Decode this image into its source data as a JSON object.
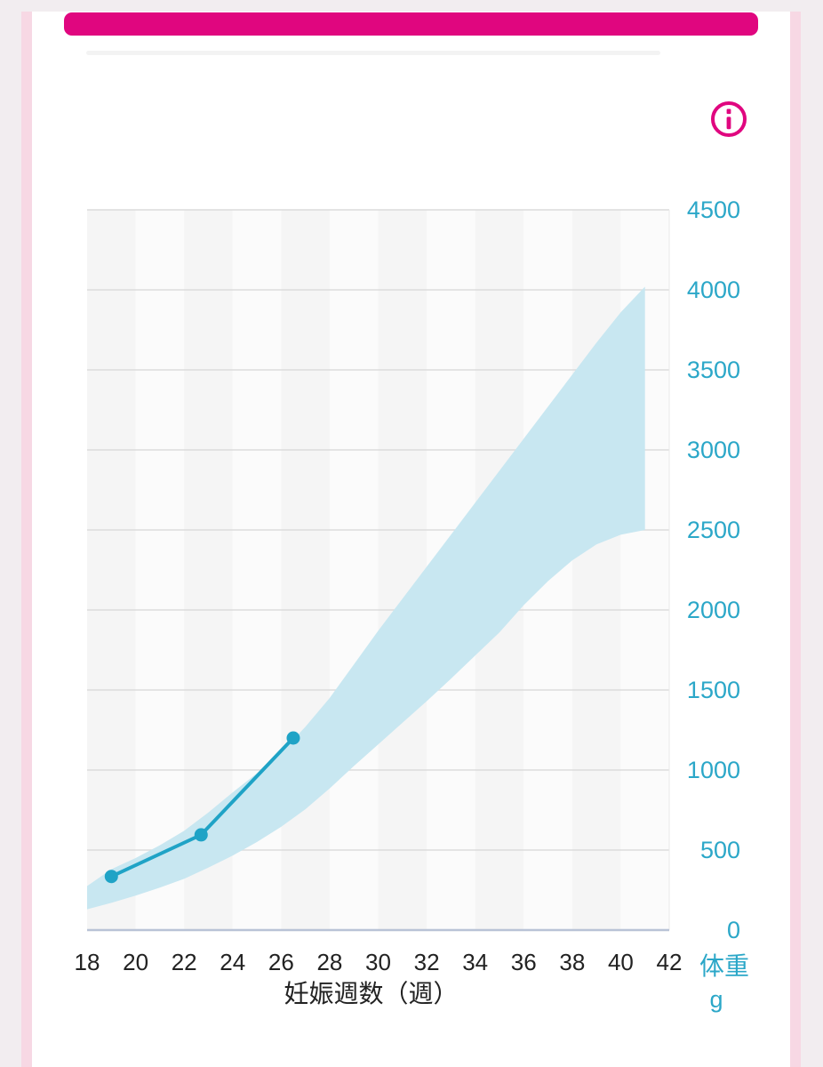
{
  "colors": {
    "accent_magenta": "#E0067F",
    "axis_text_cyan": "#2BA7C8",
    "line_cyan": "#1FA3C6",
    "band_fill": "#C8E7F1",
    "gridline": "#DCDCDC",
    "plot_right_border": "#EAEAEA",
    "x_axis_line": "#B9C3D6",
    "column_dark": "#F5F5F5",
    "column_light": "#FBFBFB",
    "tick_text_dark": "#222222",
    "page_background": "#F2EDF0",
    "side_strip_pink": "#F7D8E4",
    "card_background": "#FFFFFF",
    "header_divider": "#F3F3F3"
  },
  "icons": {
    "info": "i-in-circle"
  },
  "chart_data": {
    "type": "area",
    "title": "",
    "xlabel": "妊娠週数（週）",
    "ylabel": "体重",
    "y_unit": "g",
    "xlim": [
      18,
      42
    ],
    "ylim": [
      0,
      4500
    ],
    "x_ticks": [
      18,
      20,
      22,
      24,
      26,
      28,
      30,
      32,
      34,
      36,
      38,
      40,
      42
    ],
    "y_ticks": [
      0,
      500,
      1000,
      1500,
      2000,
      2500,
      3000,
      3500,
      4000,
      4500
    ],
    "grid": "horizontal",
    "legend": "none",
    "band": {
      "name": "normal_weight_range",
      "weeks": [
        18,
        19,
        20,
        21,
        22,
        23,
        24,
        25,
        26,
        27,
        28,
        29,
        30,
        31,
        32,
        33,
        34,
        35,
        36,
        37,
        38,
        39,
        40,
        41
      ],
      "lower_g": [
        130,
        170,
        215,
        265,
        320,
        390,
        465,
        550,
        645,
        755,
        885,
        1025,
        1160,
        1295,
        1430,
        1570,
        1715,
        1860,
        2030,
        2180,
        2310,
        2410,
        2470,
        2500
      ],
      "upper_g": [
        275,
        380,
        450,
        530,
        620,
        735,
        860,
        980,
        1110,
        1270,
        1450,
        1660,
        1870,
        2070,
        2270,
        2470,
        2670,
        2870,
        3070,
        3270,
        3470,
        3670,
        3860,
        4020
      ]
    },
    "series": [
      {
        "name": "measured_fetal_weight",
        "style": "line-with-markers",
        "points": [
          {
            "week": 19.0,
            "grams": 335
          },
          {
            "week": 22.7,
            "grams": 595
          },
          {
            "week": 26.5,
            "grams": 1200
          }
        ]
      }
    ]
  }
}
